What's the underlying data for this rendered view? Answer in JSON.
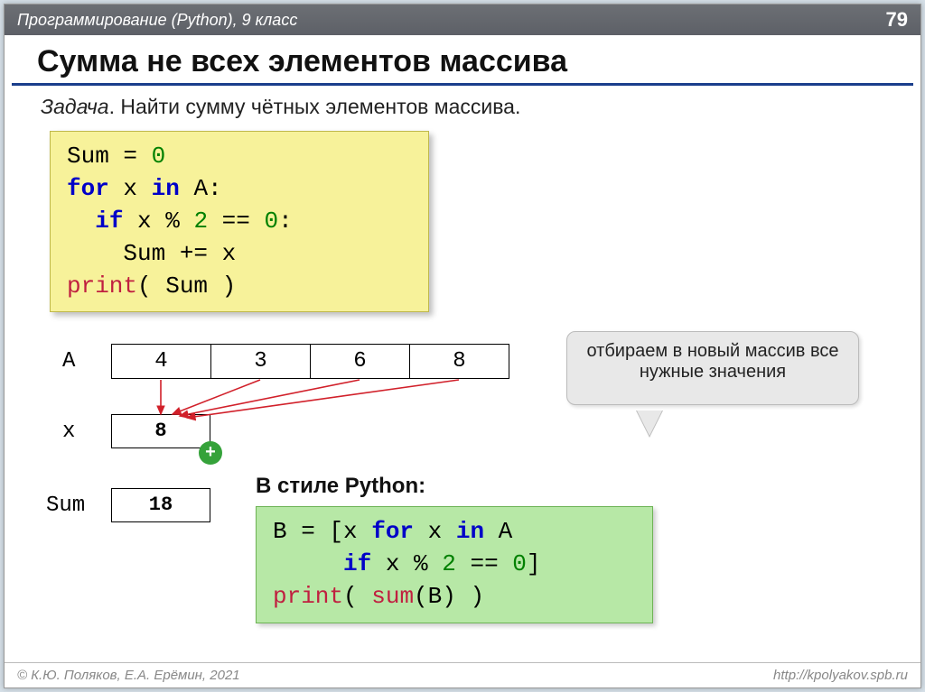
{
  "header": {
    "course": "Программирование (Python), 9 класс",
    "page": "79"
  },
  "title": "Сумма не всех элементов массива",
  "task": {
    "label": "Задача",
    "text": ". Найти сумму чётных элементов массива."
  },
  "code1": {
    "tokens": [
      [
        "var",
        "Sum "
      ],
      [
        "var",
        "= "
      ],
      [
        "num",
        "0"
      ],
      [
        "var",
        "\n"
      ],
      [
        "kw",
        "for"
      ],
      [
        "var",
        " x "
      ],
      [
        "kw",
        "in"
      ],
      [
        "var",
        " A:\n"
      ],
      [
        "var",
        "  "
      ],
      [
        "kw",
        "if"
      ],
      [
        "var",
        " x % "
      ],
      [
        "num",
        "2"
      ],
      [
        "var",
        " == "
      ],
      [
        "num",
        "0"
      ],
      [
        "var",
        ":\n"
      ],
      [
        "var",
        "    Sum += x\n"
      ],
      [
        "fn",
        "print"
      ],
      [
        "var",
        "( Sum )"
      ]
    ]
  },
  "python_style_label": "В стиле Python:",
  "code2": {
    "tokens": [
      [
        "var",
        "B = [x "
      ],
      [
        "kw",
        "for"
      ],
      [
        "var",
        " x "
      ],
      [
        "kw",
        "in"
      ],
      [
        "var",
        " A\n"
      ],
      [
        "var",
        "     "
      ],
      [
        "kw",
        "if"
      ],
      [
        "var",
        " x % "
      ],
      [
        "num",
        "2"
      ],
      [
        "var",
        " == "
      ],
      [
        "num",
        "0"
      ],
      [
        "var",
        "]\n"
      ],
      [
        "fn",
        "print"
      ],
      [
        "var",
        "( "
      ],
      [
        "fn",
        "sum"
      ],
      [
        "var",
        "(B) )"
      ]
    ]
  },
  "array": {
    "label": "A",
    "values": [
      "4",
      "3",
      "6",
      "8"
    ]
  },
  "x": {
    "label": "x",
    "display": "8"
  },
  "sum": {
    "label": "Sum",
    "display": "18"
  },
  "plus": "+",
  "callout": "отбираем в новый массив все нужные значения",
  "arrows": {
    "color": "#d1202a",
    "paths": [
      "M173,416 L173,454",
      "M283,416 L186,454",
      "M393,416 L194,456",
      "M503,416 L202,458"
    ]
  },
  "footer": {
    "copyright": "© К.Ю. Поляков, Е.А. Ерёмин, 2021",
    "url": "http://kpolyakov.spb.ru"
  }
}
